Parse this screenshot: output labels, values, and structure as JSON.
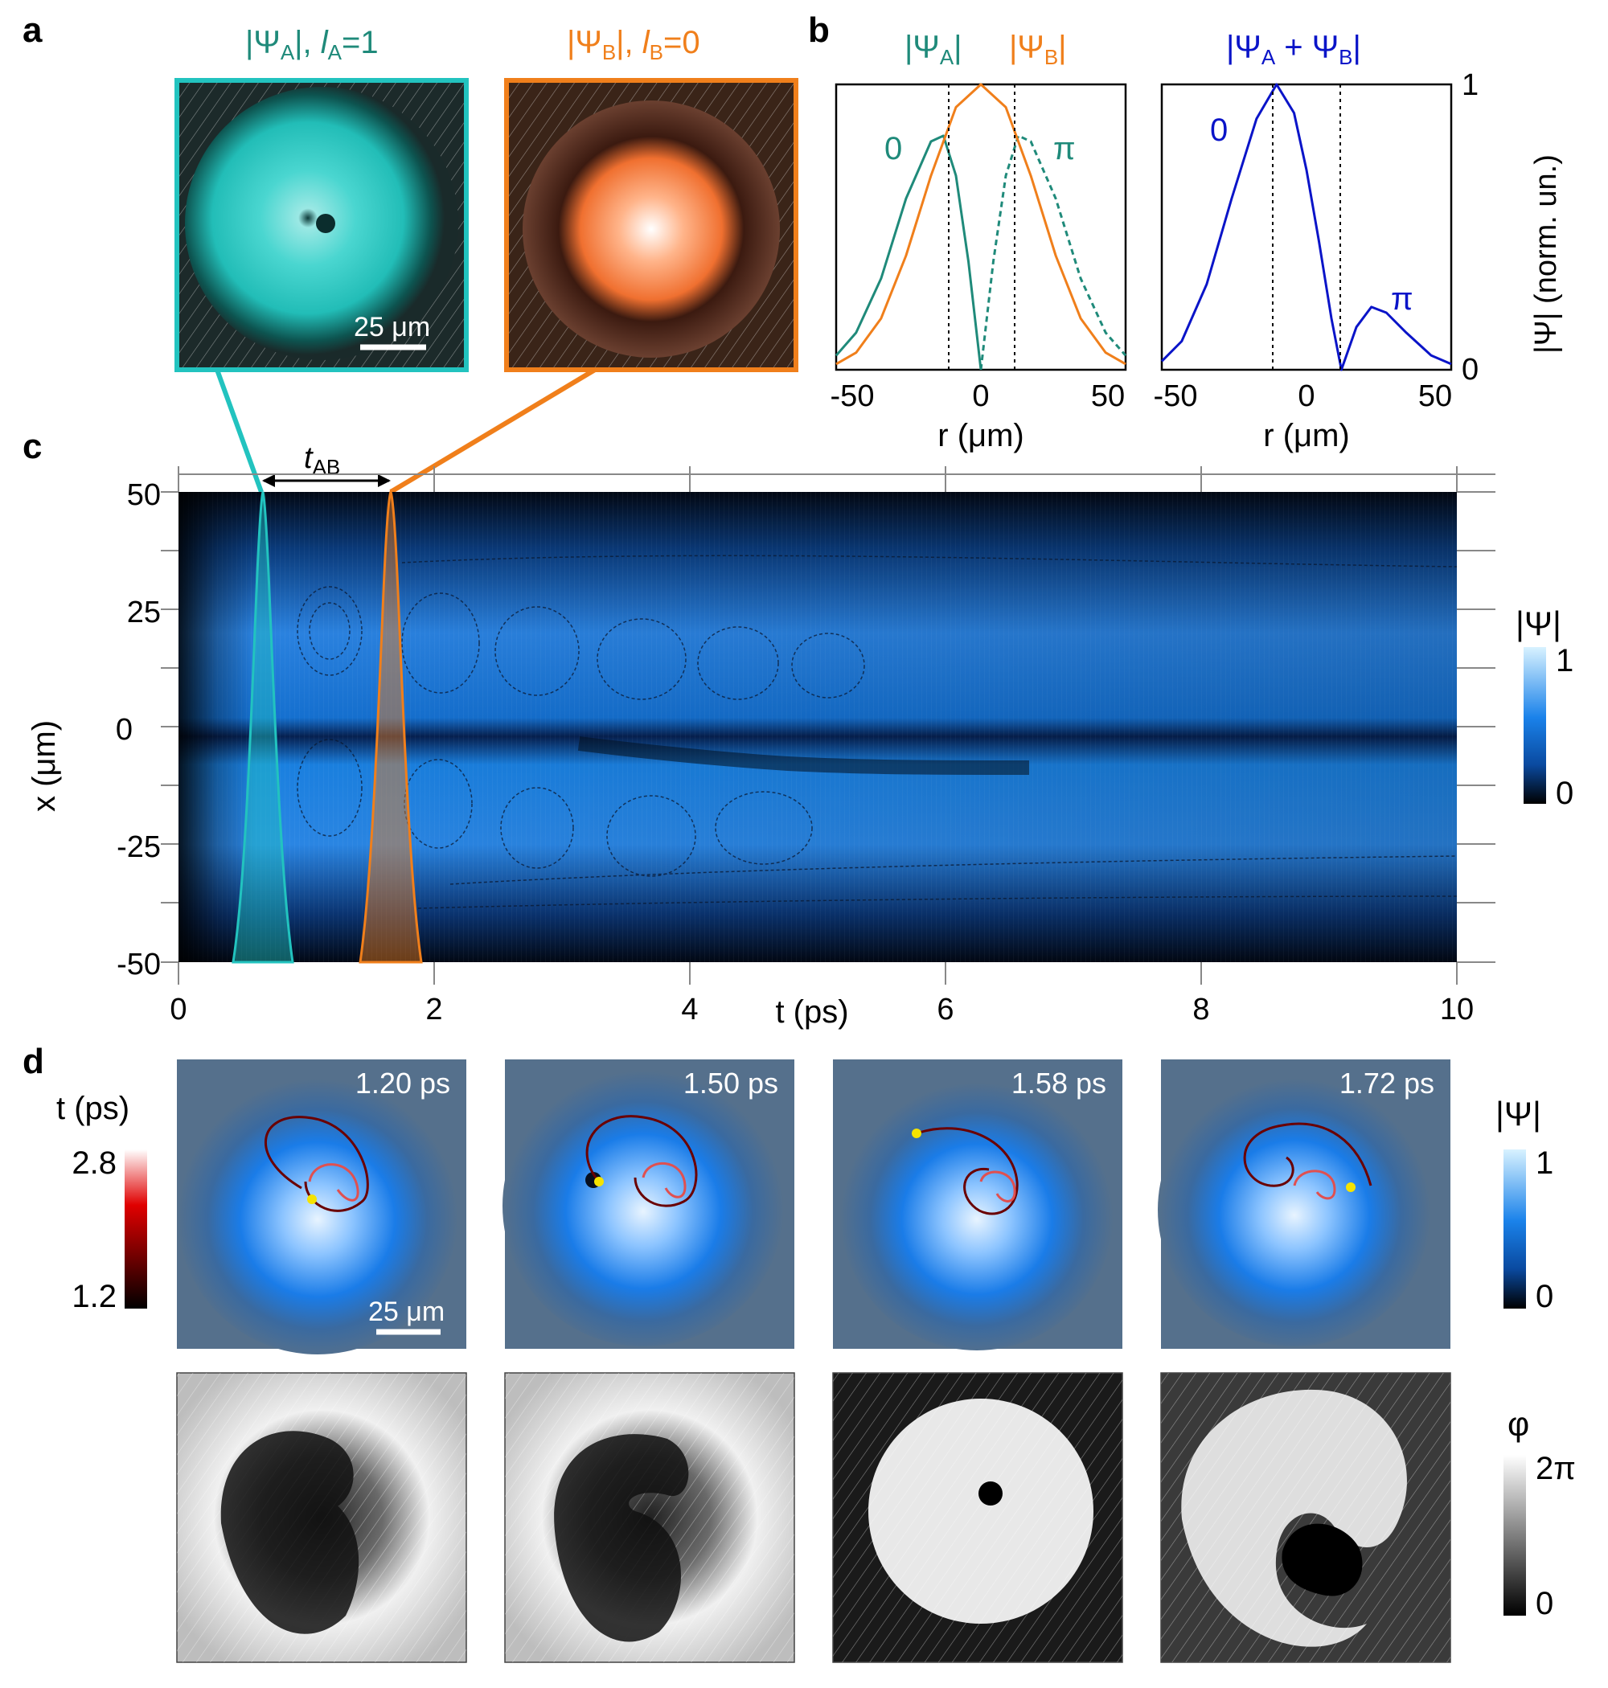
{
  "panels": {
    "a": {
      "letter": "a",
      "titleA_main": "|Ψ",
      "titleA_sub": "A",
      "titleA_rest": "|, ",
      "titleA_l": "l",
      "titleA_lsub": "A",
      "titleA_eq": "=1",
      "titleB_main": "|Ψ",
      "titleB_sub": "B",
      "titleB_rest": "|, ",
      "titleB_l": "l",
      "titleB_lsub": "B",
      "titleB_eq": "=0",
      "scalebar": "25 μm",
      "colorA": "#22c3bf",
      "colorB": "#f07f1b"
    },
    "b": {
      "letter": "b",
      "left_title_A": "|Ψ",
      "left_title_A_sub": "A",
      "left_title_A_end": "|",
      "left_title_B": "|Ψ",
      "left_title_B_sub": "B",
      "left_title_B_end": "|",
      "right_title": "|Ψ",
      "right_title_sub1": "A",
      "right_title_mid": " + Ψ",
      "right_title_sub2": "B",
      "right_title_end": "|",
      "left_phase_0": "0",
      "left_phase_pi": "π",
      "right_phase_0": "0",
      "right_phase_pi": "π",
      "xlabel_left": "r (μm)",
      "xlabel_right": "r (μm)",
      "ylabel": "|Ψ| (norm. un.)",
      "yticks": [
        "0",
        "1"
      ],
      "xticks": [
        "-50",
        "0",
        "50"
      ]
    },
    "c": {
      "letter": "c",
      "tab_label": "t",
      "tab_sub": "AB",
      "xlabel": "t (ps)",
      "ylabel": "x (μm)",
      "xticks": [
        "0",
        "2",
        "4",
        "6",
        "8",
        "10"
      ],
      "yticks": [
        "50",
        "25",
        "0",
        "-25",
        "-50"
      ],
      "colorbar_title": "|Ψ|",
      "colorbar_ticks": [
        "1",
        "0"
      ]
    },
    "d": {
      "letter": "d",
      "times": [
        "1.20 ps",
        "1.50 ps",
        "1.58 ps",
        "1.72 ps"
      ],
      "scalebar": "25 μm",
      "tcolorbar_title": "t (ps)",
      "tcolorbar_ticks": [
        "2.8",
        "1.2"
      ],
      "psi_colorbar_title": "|Ψ|",
      "psi_colorbar_ticks": [
        "1",
        "0"
      ],
      "phase_colorbar_title": "φ",
      "phase_colorbar_ticks": [
        "2π",
        "0"
      ]
    }
  },
  "chart_data": [
    {
      "type": "line",
      "title": "|ΨA| |ΨB|",
      "xlabel": "r (μm)",
      "ylabel": "|Ψ| (norm. un.)",
      "xlim": [
        -58,
        58
      ],
      "ylim": [
        0,
        1
      ],
      "series": [
        {
          "name": "|ΨA|",
          "color": "#1f8a7a",
          "x": [
            -58,
            -50,
            -40,
            -30,
            -20,
            -15,
            -10,
            -5,
            0
          ],
          "values": [
            0.05,
            0.13,
            0.32,
            0.6,
            0.8,
            0.82,
            0.68,
            0.38,
            0.0
          ]
        },
        {
          "name": "|ΨA| (π branch, dashed)",
          "color": "#1f8a7a",
          "x": [
            0,
            5,
            10,
            15,
            20,
            30,
            40,
            50,
            58
          ],
          "values": [
            0.0,
            0.38,
            0.68,
            0.82,
            0.8,
            0.6,
            0.32,
            0.13,
            0.05
          ]
        },
        {
          "name": "|ΨB|",
          "color": "#f07f1b",
          "x": [
            -58,
            -50,
            -40,
            -30,
            -20,
            -10,
            0,
            10,
            20,
            30,
            40,
            50,
            58
          ],
          "values": [
            0.02,
            0.06,
            0.18,
            0.4,
            0.68,
            0.92,
            1.0,
            0.92,
            0.68,
            0.4,
            0.18,
            0.06,
            0.02
          ]
        }
      ]
    },
    {
      "type": "line",
      "title": "|ΨA + ΨB|",
      "xlabel": "r (μm)",
      "ylabel": "|Ψ| (norm. un.)",
      "xlim": [
        -58,
        58
      ],
      "ylim": [
        0,
        1
      ],
      "series": [
        {
          "name": "|ΨA + ΨB|",
          "color": "#0a14c8",
          "x": [
            -58,
            -50,
            -40,
            -30,
            -20,
            -12,
            -5,
            0,
            5,
            10,
            14,
            20,
            26,
            32,
            40,
            50,
            58
          ],
          "values": [
            0.03,
            0.1,
            0.3,
            0.6,
            0.88,
            1.0,
            0.9,
            0.7,
            0.45,
            0.18,
            0.0,
            0.15,
            0.22,
            0.2,
            0.13,
            0.05,
            0.02
          ]
        }
      ]
    },
    {
      "type": "heatmap",
      "title": "",
      "xlabel": "t (ps)",
      "ylabel": "x (μm)",
      "xlim": [
        0,
        10
      ],
      "ylim": [
        -50,
        50
      ],
      "pulses": [
        {
          "name": "pulse A",
          "t_peak": 0.65,
          "color": "#22c3bf"
        },
        {
          "name": "pulse B",
          "t_peak": 1.65,
          "color": "#f07f1b"
        }
      ]
    }
  ]
}
